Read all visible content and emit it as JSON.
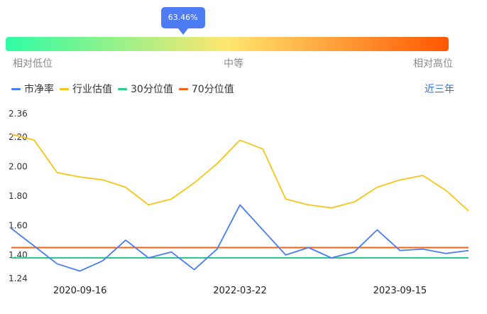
{
  "gauge": {
    "percent_label": "63.46%",
    "position_fraction": 0.4,
    "low_label": "相对低位",
    "mid_label": "中等",
    "high_label": "相对高位",
    "colors": [
      "#2dfca4",
      "#ffe66f",
      "#ff5500"
    ]
  },
  "legend": {
    "items": [
      {
        "label": "市净率",
        "color": "#4a7ef0"
      },
      {
        "label": "行业估值",
        "color": "#f5c518"
      },
      {
        "label": "30分位值",
        "color": "#2ecc8a"
      },
      {
        "label": "70分位值",
        "color": "#f26418"
      }
    ],
    "range_label": "近三年"
  },
  "chart_data": {
    "type": "line",
    "y_ticks": [
      "2.36",
      "2.20",
      "2.00",
      "1.80",
      "1.60",
      "1.40",
      "1.24"
    ],
    "ylim": [
      1.24,
      2.36
    ],
    "x_tick_labels": [
      "2020-09-16",
      "2022-03-22",
      "2023-09-15"
    ],
    "x": [
      "2020-01",
      "2020-04",
      "2020-07",
      "2020-09-16",
      "2020-10",
      "2021-01",
      "2021-04",
      "2021-07",
      "2021-10",
      "2022-01",
      "2022-03-22",
      "2022-04",
      "2022-07",
      "2022-10",
      "2023-01",
      "2023-04",
      "2023-07",
      "2023-09-15",
      "2023-10",
      "2024-01",
      "2024-04"
    ],
    "series": [
      {
        "name": "市净率",
        "color": "#4a7ef0",
        "values": [
          1.58,
          1.46,
          1.34,
          1.29,
          1.36,
          1.5,
          1.38,
          1.42,
          1.3,
          1.44,
          1.74,
          1.57,
          1.4,
          1.45,
          1.38,
          1.42,
          1.57,
          1.43,
          1.44,
          1.41,
          1.43
        ]
      },
      {
        "name": "行业估值",
        "color": "#f5c518",
        "values": [
          2.22,
          2.18,
          1.96,
          1.93,
          1.91,
          1.86,
          1.74,
          1.78,
          1.89,
          2.02,
          2.18,
          2.12,
          1.78,
          1.74,
          1.72,
          1.76,
          1.86,
          1.91,
          1.94,
          1.84,
          1.7
        ]
      },
      {
        "name": "30分位值",
        "color": "#2ecc8a",
        "values": [
          1.38,
          1.38,
          1.38,
          1.38,
          1.38,
          1.38,
          1.38,
          1.38,
          1.38,
          1.38,
          1.38,
          1.38,
          1.38,
          1.38,
          1.38,
          1.38,
          1.38,
          1.38,
          1.38,
          1.38,
          1.38
        ]
      },
      {
        "name": "70分位值",
        "color": "#f26418",
        "values": [
          1.45,
          1.45,
          1.45,
          1.45,
          1.45,
          1.45,
          1.45,
          1.45,
          1.45,
          1.45,
          1.45,
          1.45,
          1.45,
          1.45,
          1.45,
          1.45,
          1.45,
          1.45,
          1.45,
          1.45,
          1.45
        ]
      }
    ]
  }
}
